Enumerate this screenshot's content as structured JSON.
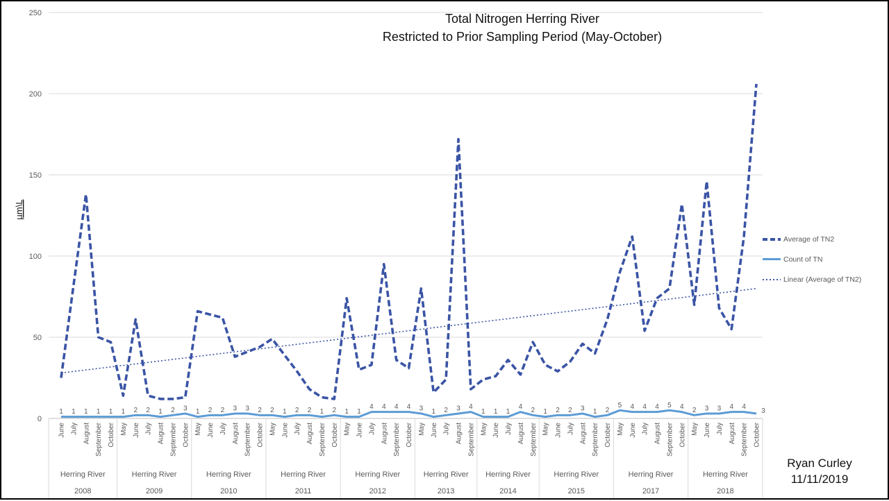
{
  "title": {
    "line1": "Total Nitrogen Herring River",
    "line2": "Restricted to Prior Sampling Period (May-October)"
  },
  "attribution": {
    "line1": "Ryan Curley",
    "line2": "11/11/2019"
  },
  "legend": {
    "items": [
      {
        "label": "Average of TN2",
        "style": "dashed"
      },
      {
        "label": "Count of TN",
        "style": "solid"
      },
      {
        "label": "Linear (Average of TN2)",
        "style": "dotted"
      }
    ]
  },
  "colors": {
    "average_line": "#3A54A5",
    "count_line": "#5B9BD5",
    "trend_line": "#3A54A5",
    "gridline": "#D9D9D9",
    "axis_line": "#BFBFBF",
    "axis_text": "#595959"
  },
  "chart_data": {
    "type": "line",
    "title": "Total Nitrogen Herring River — Restricted to Prior Sampling Period (May-October)",
    "ylabel": "µm\\L",
    "ylim": [
      0,
      250
    ],
    "yticks": [
      0,
      50,
      100,
      150,
      200,
      250
    ],
    "grid": "horizontal",
    "legend_position": "right",
    "river_label": "Herring River",
    "groups": [
      {
        "year": "2008",
        "river": "Herring River",
        "months": [
          "June",
          "July",
          "August",
          "September",
          "October"
        ],
        "avg_tn2": [
          25,
          82,
          138,
          50,
          47
        ],
        "count_tn": [
          1,
          1,
          1,
          1,
          1
        ]
      },
      {
        "year": "2009",
        "river": "Herring River",
        "months": [
          "May",
          "June",
          "July",
          "August",
          "September",
          "October"
        ],
        "avg_tn2": [
          14,
          61,
          14,
          12,
          12,
          13
        ],
        "count_tn": [
          1,
          2,
          2,
          1,
          2,
          3
        ]
      },
      {
        "year": "2010",
        "river": "Herring River",
        "months": [
          "May",
          "June",
          "July",
          "August",
          "September",
          "October"
        ],
        "avg_tn2": [
          66,
          64,
          62,
          38,
          41,
          44
        ],
        "count_tn": [
          1,
          2,
          2,
          3,
          3,
          2
        ]
      },
      {
        "year": "2011",
        "river": "Herring River",
        "months": [
          "May",
          "June",
          "July",
          "August",
          "September",
          "October"
        ],
        "avg_tn2": [
          49,
          39,
          29,
          18,
          13,
          12
        ],
        "count_tn": [
          2,
          1,
          2,
          2,
          1,
          2
        ]
      },
      {
        "year": "2012",
        "river": "Herring River",
        "months": [
          "May",
          "June",
          "July",
          "August",
          "September",
          "October"
        ],
        "avg_tn2": [
          74,
          30,
          33,
          95,
          36,
          31
        ],
        "count_tn": [
          1,
          1,
          4,
          4,
          4,
          4
        ]
      },
      {
        "year": "2013",
        "river": "Herring River",
        "months": [
          "May",
          "June",
          "July",
          "August",
          "September"
        ],
        "avg_tn2": [
          80,
          16,
          24,
          172,
          18
        ],
        "count_tn": [
          3,
          1,
          2,
          3,
          4
        ]
      },
      {
        "year": "2014",
        "river": "Herring River",
        "months": [
          "May",
          "June",
          "July",
          "August",
          "September"
        ],
        "avg_tn2": [
          24,
          26,
          36,
          27,
          47
        ],
        "count_tn": [
          1,
          1,
          1,
          4,
          2
        ]
      },
      {
        "year": "2015",
        "river": "Herring River",
        "months": [
          "May",
          "June",
          "July",
          "August",
          "September",
          "October"
        ],
        "avg_tn2": [
          33,
          29,
          35,
          46,
          40,
          61
        ],
        "count_tn": [
          1,
          2,
          2,
          3,
          1,
          2
        ]
      },
      {
        "year": "2017",
        "river": "Herring River",
        "months": [
          "May",
          "June",
          "July",
          "August",
          "September",
          "October"
        ],
        "avg_tn2": [
          90,
          112,
          54,
          74,
          80,
          132
        ],
        "count_tn": [
          5,
          4,
          4,
          4,
          5,
          4
        ]
      },
      {
        "year": "2018",
        "river": "Herring River",
        "months": [
          "May",
          "June",
          "July",
          "August",
          "September",
          "October"
        ],
        "avg_tn2": [
          70,
          146,
          68,
          55,
          112,
          206
        ],
        "count_tn": [
          2,
          3,
          3,
          4,
          4,
          3
        ]
      }
    ],
    "series": [
      {
        "name": "Average of TN2",
        "style": "dashed",
        "color": "#3A54A5"
      },
      {
        "name": "Count of TN",
        "style": "solid",
        "color": "#5B9BD5",
        "data_labels": true
      },
      {
        "name": "Linear (Average of TN2)",
        "style": "dotted",
        "color": "#3A54A5",
        "trend": {
          "start_value": 28,
          "end_value": 80
        }
      }
    ]
  }
}
